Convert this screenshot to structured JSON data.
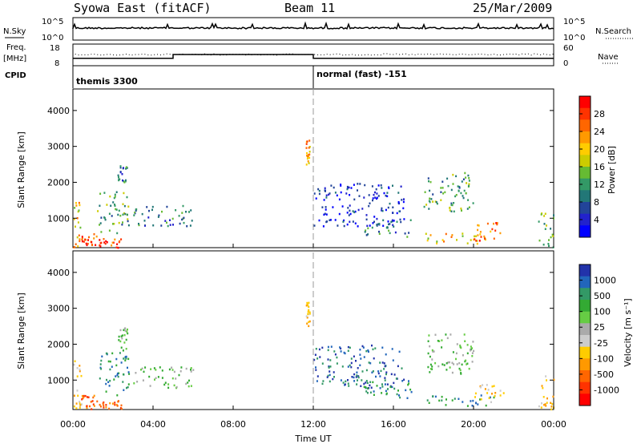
{
  "header": {
    "station": "Syowa East (fitACF)",
    "beam": "Beam 11",
    "date": "25/Mar/2009"
  },
  "noise_panel": {
    "left_label": "N.Sky",
    "right_label": "N.Search",
    "left_ticks": [
      "10^5",
      "10^0"
    ],
    "right_ticks": [
      "10^5",
      "10^0"
    ]
  },
  "freq_panel": {
    "left_label_1": "Freq.",
    "left_label_2": "[MHz]",
    "left_ticks": [
      "18",
      "8"
    ],
    "right_label": "Nave",
    "right_ticks": [
      "60",
      "0"
    ],
    "freq_steps": [
      {
        "t0": 0.0,
        "t1": 5.0,
        "mhz": 11.0
      },
      {
        "t0": 5.0,
        "t1": 12.0,
        "mhz": 13.0
      },
      {
        "t0": 12.0,
        "t1": 24.0,
        "mhz": 11.0
      }
    ]
  },
  "cpid": {
    "label": "CPID",
    "segments": [
      {
        "start": 0,
        "name": "themis 3300"
      },
      {
        "start": 12,
        "name": "normal (fast) -151"
      }
    ]
  },
  "axes": {
    "ylabel": "Slant Range [km]",
    "yticks": [
      "1000",
      "2000",
      "3000",
      "4000"
    ],
    "ylim": [
      180,
      4600
    ],
    "xticks": [
      "00:00",
      "04:00",
      "08:00",
      "12:00",
      "16:00",
      "20:00",
      "00:00"
    ],
    "xlabel": "Time UT",
    "xlim": [
      0,
      24
    ]
  },
  "power_scale": {
    "label": "Power [dB]",
    "ticks": [
      "28",
      "24",
      "20",
      "16",
      "12",
      "8",
      "4"
    ],
    "colors": [
      "#ff0000",
      "#ff3300",
      "#ff6600",
      "#ff9900",
      "#ffcc00",
      "#cccc00",
      "#66bb33",
      "#339966",
      "#227777",
      "#224499",
      "#2222cc",
      "#0000ff"
    ]
  },
  "velocity_scale": {
    "label": "Velocity [m s⁻¹]",
    "ticks": [
      "1000",
      "500",
      "100",
      "25",
      "-25",
      "-100",
      "-500",
      "-1000"
    ],
    "colors": [
      "#2233aa",
      "#2266bb",
      "#339966",
      "#33aa33",
      "#66cc44",
      "#aaaaaa",
      "#cccccc",
      "#ffcc00",
      "#ff9900",
      "#ff6600",
      "#ff3300",
      "#ff0000"
    ]
  },
  "chart_data": {
    "type": "heatmap",
    "title": "Syowa East (fitACF) Beam 11 25/Mar/2009",
    "xlabel": "Time UT",
    "ylabel": "Slant Range [km]",
    "xlim": [
      0,
      24
    ],
    "ylim": [
      180,
      4600
    ],
    "panels": [
      "Power [dB]",
      "Velocity [m s⁻¹]"
    ],
    "scatter_regions": [
      {
        "t0": 0.0,
        "t1": 0.4,
        "r0": 200,
        "r1": 1600,
        "power": 20,
        "velocity": -100
      },
      {
        "t0": 0.4,
        "t1": 1.2,
        "r0": 200,
        "r1": 600,
        "power": 26,
        "velocity": -500
      },
      {
        "t0": 1.2,
        "t1": 2.4,
        "r0": 200,
        "r1": 450,
        "power": 28,
        "velocity": -500
      },
      {
        "t0": 1.2,
        "t1": 2.8,
        "r0": 600,
        "r1": 1800,
        "power": 12,
        "velocity": 100
      },
      {
        "t0": 2.2,
        "t1": 2.7,
        "r0": 1800,
        "r1": 2500,
        "power": 8,
        "velocity": 25
      },
      {
        "t0": 3.0,
        "t1": 6.0,
        "r0": 800,
        "r1": 1400,
        "power": 8,
        "velocity": 25
      },
      {
        "t0": 11.6,
        "t1": 11.8,
        "r0": 2500,
        "r1": 3200,
        "power": 22,
        "velocity": -100
      },
      {
        "t0": 12.0,
        "t1": 16.5,
        "r0": 800,
        "r1": 2000,
        "power": 4,
        "velocity": 500
      },
      {
        "t0": 14.5,
        "t1": 17.0,
        "r0": 500,
        "r1": 1000,
        "power": 8,
        "velocity": 100
      },
      {
        "t0": 17.5,
        "t1": 20.0,
        "r0": 1200,
        "r1": 2300,
        "power": 12,
        "velocity": 25
      },
      {
        "t0": 17.5,
        "t1": 21.0,
        "r0": 300,
        "r1": 600,
        "power": 20,
        "velocity": 100
      },
      {
        "t0": 20.0,
        "t1": 21.5,
        "r0": 400,
        "r1": 900,
        "power": 24,
        "velocity": -100
      },
      {
        "t0": 23.2,
        "t1": 24.0,
        "r0": 200,
        "r1": 1200,
        "power": 14,
        "velocity": -100
      }
    ]
  }
}
